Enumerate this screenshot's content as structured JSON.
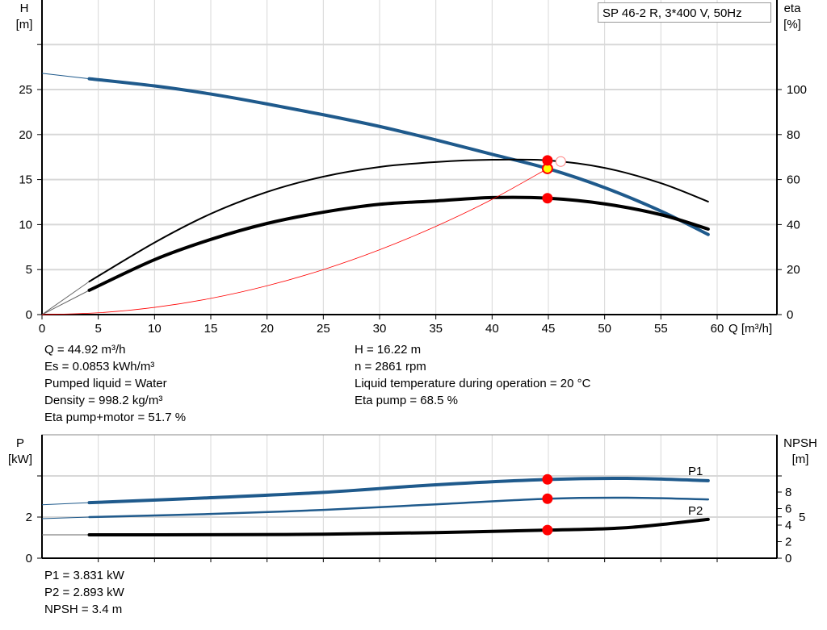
{
  "chart_data": [
    {
      "type": "line",
      "title": "SP 46-2 R, 3*400 V, 50Hz",
      "xlabel": "Q [m³/h]",
      "ylabel": "H\n[m]",
      "ylabel_right": "eta\n[%]",
      "xlim": [
        0,
        65
      ],
      "ylim": [
        0,
        35
      ],
      "ylim_right": [
        0,
        125
      ],
      "grid": true,
      "x_ticks": [
        "0",
        "5",
        "10",
        "15",
        "20",
        "25",
        "30",
        "35",
        "40",
        "45",
        "50",
        "55",
        "60"
      ],
      "y_ticks": [
        "0",
        "5",
        "10",
        "15",
        "20",
        "25"
      ],
      "y_ticks_right": [
        "0",
        "20",
        "40",
        "60",
        "80",
        "100"
      ],
      "series": [
        {
          "id": "head",
          "axis": "left",
          "color": "#1f5a8c",
          "x": [
            4.2,
            10,
            15,
            20,
            25,
            30,
            35,
            40,
            45,
            50,
            55,
            59.2
          ],
          "y": [
            26.2,
            25.4,
            24.5,
            23.4,
            22.2,
            20.9,
            19.4,
            17.8,
            16.2,
            14.1,
            11.5,
            8.9
          ],
          "extrapolated_from": [
            0,
            26.8
          ]
        },
        {
          "id": "eta-pump",
          "axis": "right",
          "color": "#000000",
          "x": [
            4.2,
            10,
            15,
            20,
            25,
            30,
            35,
            40,
            45,
            50,
            55,
            59.2
          ],
          "y": [
            14.7,
            32,
            44.8,
            54.5,
            61.3,
            65.6,
            67.8,
            68.8,
            68.5,
            65.2,
            58.4,
            50.2
          ],
          "extrapolated_from": [
            0,
            0
          ]
        },
        {
          "id": "eta-pump-motor",
          "axis": "right",
          "color": "#000000",
          "x": [
            4.2,
            10,
            15,
            20,
            25,
            30,
            35,
            40,
            45,
            50,
            55,
            59.2
          ],
          "y": [
            10.8,
            24.4,
            33.4,
            40.5,
            45.5,
            49,
            50.5,
            52,
            51.7,
            49.2,
            44.4,
            38
          ],
          "extrapolated_from": [
            0,
            0
          ]
        },
        {
          "id": "system-curve",
          "axis": "left",
          "color": "#ff0000",
          "x": [
            0,
            5,
            10,
            15,
            20,
            25,
            30,
            35,
            40,
            44.92
          ],
          "y": [
            0,
            0.2,
            0.8,
            1.8,
            3.2,
            5.0,
            7.2,
            9.8,
            12.8,
            16.22
          ]
        }
      ],
      "points": [
        {
          "id": "duty-point-head",
          "x": 44.92,
          "y": 16.22,
          "axis": "left",
          "fill": "#ffff00",
          "stroke": "#ff0000"
        },
        {
          "id": "duty-point-eta-pump",
          "x": 44.92,
          "y": 68.5,
          "axis": "right",
          "fill": "#ff0000",
          "stroke": "#ff0000"
        },
        {
          "id": "duty-point-eta-pump-motor",
          "x": 44.92,
          "y": 51.7,
          "axis": "right",
          "fill": "#ff0000",
          "stroke": "#ff0000"
        },
        {
          "id": "best-efficiency-point",
          "x": 46.1,
          "y": 68.0,
          "axis": "right",
          "fill": "#ffffff",
          "stroke": "#ff8080"
        }
      ]
    },
    {
      "type": "line",
      "ylabel": "P\n[kW]",
      "ylabel_right": "NPSH\n[m]",
      "xlim": [
        0,
        65
      ],
      "ylim": [
        0,
        6
      ],
      "ylim_right": [
        0,
        15
      ],
      "grid": true,
      "y_ticks": [
        "0",
        "2"
      ],
      "y_ticks_right": [
        "0",
        "2",
        "4",
        "5",
        "6",
        "8"
      ],
      "series": [
        {
          "id": "P1",
          "name": "P1",
          "axis": "left",
          "color": "#1f5a8c",
          "x": [
            4.2,
            15,
            25,
            35,
            45,
            52,
            59.2
          ],
          "y": [
            2.7,
            2.94,
            3.2,
            3.57,
            3.83,
            3.88,
            3.77
          ],
          "extrapolated_from": [
            0,
            2.6
          ]
        },
        {
          "id": "P2",
          "name": "P2",
          "axis": "left",
          "color": "#1f5a8c",
          "x": [
            4.2,
            15,
            25,
            35,
            45,
            52,
            59.2
          ],
          "y": [
            2.0,
            2.15,
            2.35,
            2.62,
            2.893,
            2.94,
            2.86
          ],
          "extrapolated_from": [
            0,
            1.92
          ]
        },
        {
          "id": "NPSH",
          "axis": "right",
          "color": "#000000",
          "x": [
            4.2,
            15,
            25,
            35,
            45,
            52,
            59.2
          ],
          "y": [
            2.83,
            2.84,
            2.9,
            3.1,
            3.4,
            3.7,
            4.7
          ],
          "extrapolated_from": [
            0,
            2.83
          ]
        }
      ],
      "points": [
        {
          "id": "duty-point-P1",
          "x": 44.92,
          "y": 3.831,
          "axis": "left",
          "fill": "#ff0000",
          "stroke": "#ff0000"
        },
        {
          "id": "duty-point-P2",
          "x": 44.92,
          "y": 2.893,
          "axis": "left",
          "fill": "#ff0000",
          "stroke": "#ff0000"
        },
        {
          "id": "duty-point-NPSH",
          "x": 44.92,
          "y": 3.4,
          "axis": "right",
          "fill": "#ff0000",
          "stroke": "#ff0000"
        }
      ]
    }
  ],
  "info_left": [
    "Q = 44.92 m³/h",
    "Es = 0.0853 kWh/m³",
    "Pumped liquid = Water",
    "Density = 998.2 kg/m³",
    "Eta pump+motor = 51.7 %"
  ],
  "info_right": [
    "H = 16.22 m",
    "n = 2861 rpm",
    "Liquid temperature during operation = 20 °C",
    "Eta pump = 68.5 %"
  ],
  "info_power": [
    "P1 = 3.831 kW",
    "P2 = 2.893 kW",
    "NPSH = 3.4 m"
  ],
  "axis_text": {
    "h": "H",
    "h_unit": "[m]",
    "eta": "eta",
    "eta_unit": "[%]",
    "q": "Q [m³/h]",
    "p": "P",
    "p_unit": "[kW]",
    "npsh": "NPSH",
    "npsh_unit": "[m]"
  }
}
